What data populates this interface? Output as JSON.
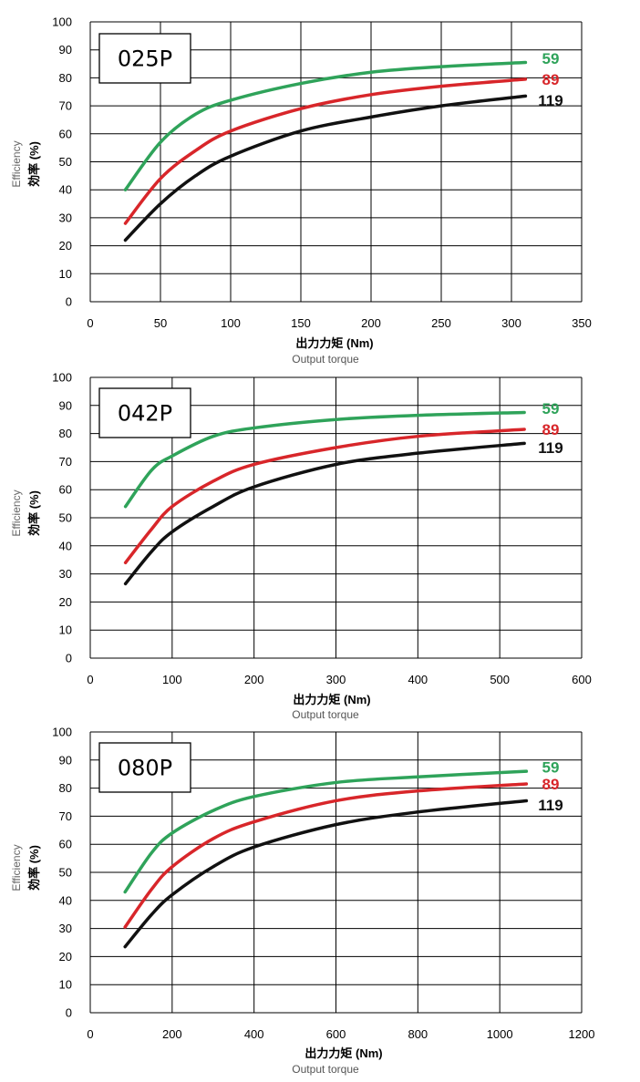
{
  "charts": [
    {
      "label": "025P",
      "xlabel": "出力力矩 (Nm)",
      "xlabel_en": "Output torque",
      "ylabel": "効率 (%)",
      "ylabel_en": "Efficiency"
    },
    {
      "label": "042P",
      "xlabel": "出力力矩 (Nm)",
      "xlabel_en": "Output torque",
      "ylabel": "効率 (%)",
      "ylabel_en": "Efficiency"
    },
    {
      "label": "080P",
      "xlabel": "出力力矩 (Nm)",
      "xlabel_en": "Output torque",
      "ylabel": "効率 (%)",
      "ylabel_en": "Efficiency"
    }
  ],
  "series_colors": {
    "59": "#2fa35a",
    "89": "#d8262a",
    "119": "#111111"
  },
  "chart_data": [
    {
      "type": "line",
      "title": "025P",
      "xlabel": "出力力矩 (Nm)",
      "ylabel": "効率 (%)",
      "xlim": [
        0,
        350
      ],
      "ylim": [
        0,
        100
      ],
      "xticks": [
        0,
        50,
        100,
        150,
        200,
        250,
        300,
        350
      ],
      "yticks": [
        0,
        10,
        20,
        30,
        40,
        50,
        60,
        70,
        80,
        90,
        100
      ],
      "grid": true,
      "series": [
        {
          "name": "59",
          "x": [
            25,
            50,
            75,
            100,
            150,
            200,
            250,
            310
          ],
          "y": [
            40,
            57,
            67,
            72,
            78,
            82,
            84,
            85.5
          ]
        },
        {
          "name": "89",
          "x": [
            25,
            50,
            75,
            100,
            150,
            200,
            250,
            310
          ],
          "y": [
            28,
            44,
            54,
            61,
            69,
            74,
            77,
            79.5
          ]
        },
        {
          "name": "119",
          "x": [
            25,
            50,
            75,
            100,
            150,
            200,
            250,
            310
          ],
          "y": [
            22,
            35,
            45,
            52,
            61,
            66,
            70,
            73.5
          ]
        }
      ]
    },
    {
      "type": "line",
      "title": "042P",
      "xlabel": "出力力矩 (Nm)",
      "ylabel": "効率 (%)",
      "xlim": [
        0,
        600
      ],
      "ylim": [
        0,
        100
      ],
      "xticks": [
        0,
        100,
        200,
        300,
        400,
        500,
        600
      ],
      "yticks": [
        0,
        10,
        20,
        30,
        40,
        50,
        60,
        70,
        80,
        90,
        100
      ],
      "grid": true,
      "series": [
        {
          "name": "59",
          "x": [
            43,
            75,
            100,
            150,
            200,
            300,
            400,
            530
          ],
          "y": [
            54,
            67,
            72,
            79,
            82,
            85,
            86.5,
            87.5
          ]
        },
        {
          "name": "89",
          "x": [
            43,
            75,
            100,
            150,
            200,
            300,
            400,
            530
          ],
          "y": [
            34,
            46,
            54,
            63,
            69,
            75,
            79,
            81.5
          ]
        },
        {
          "name": "119",
          "x": [
            43,
            75,
            100,
            150,
            200,
            300,
            400,
            530
          ],
          "y": [
            26.5,
            38,
            45,
            54,
            61,
            69,
            73,
            76.5
          ]
        }
      ]
    },
    {
      "type": "line",
      "title": "080P",
      "xlabel": "出力力矩 (Nm)",
      "ylabel": "効率 (%)",
      "xlim": [
        0,
        1200
      ],
      "ylim": [
        0,
        100
      ],
      "xticks": [
        0,
        200,
        400,
        600,
        800,
        1000,
        1200
      ],
      "yticks": [
        0,
        10,
        20,
        30,
        40,
        50,
        60,
        70,
        80,
        90,
        100
      ],
      "grid": true,
      "series": [
        {
          "name": "59",
          "x": [
            85,
            150,
            200,
            300,
            400,
            600,
            800,
            1065
          ],
          "y": [
            43,
            57,
            64,
            72,
            77,
            82,
            84,
            86
          ]
        },
        {
          "name": "89",
          "x": [
            85,
            150,
            200,
            300,
            400,
            600,
            800,
            1065
          ],
          "y": [
            30.5,
            44,
            52,
            62,
            68,
            75.5,
            79,
            81.5
          ]
        },
        {
          "name": "119",
          "x": [
            85,
            150,
            200,
            300,
            400,
            600,
            800,
            1065
          ],
          "y": [
            23.5,
            35,
            42,
            52,
            59,
            67,
            71.5,
            75.5
          ]
        }
      ]
    }
  ]
}
